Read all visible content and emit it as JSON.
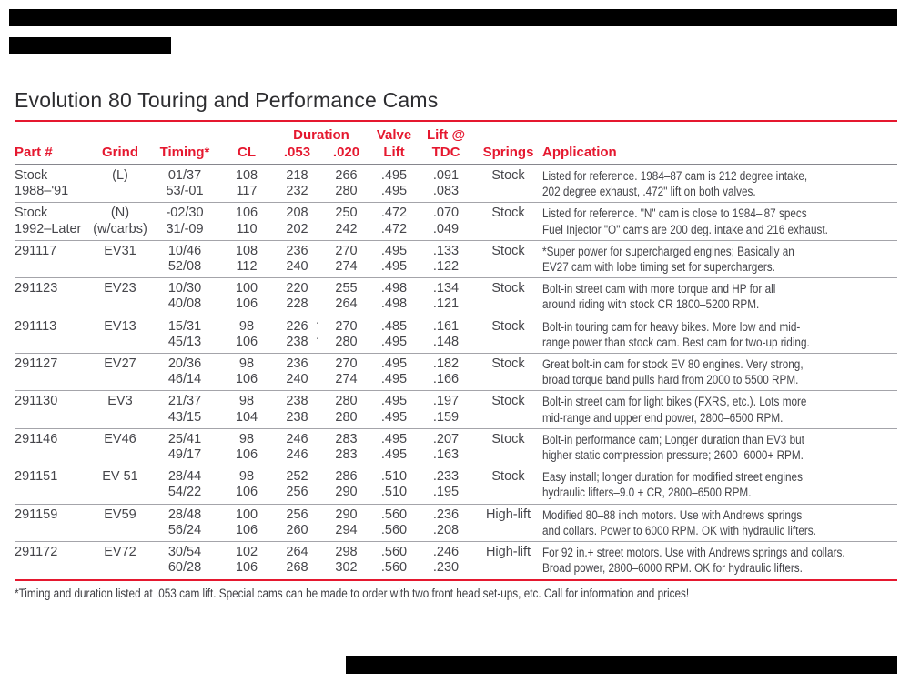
{
  "title": "Evolution 80 Touring and Performance Cams",
  "accent_color": "#e5182f",
  "redaction_color": "#000000",
  "table": {
    "columns": {
      "part": "Part #",
      "grind": "Grind",
      "timing": "Timing*",
      "cl": "CL",
      "duration_group": "Duration",
      "d053": ".053",
      "d020": ".020",
      "valve_top": "Valve",
      "valve_bottom": "Lift",
      "lift_top": "Lift @",
      "lift_bottom": "TDC",
      "springs": "Springs",
      "application": "Application"
    },
    "rows": [
      {
        "part": [
          "Stock",
          "1988–'91"
        ],
        "grind": [
          "(L)"
        ],
        "timing": [
          "01/37",
          "53/-01"
        ],
        "cl": [
          "108",
          "117"
        ],
        "d053": [
          "218",
          "232"
        ],
        "d020": [
          "266",
          "280"
        ],
        "valve": [
          ".495",
          ".495"
        ],
        "tdc": [
          ".091",
          ".083"
        ],
        "springs": "Stock",
        "application": [
          "Listed for reference. 1984–87 cam is 212 degree intake,",
          "202 degree exhaust, .472\" lift on both valves."
        ]
      },
      {
        "part": [
          "Stock",
          "1992–Later"
        ],
        "grind": [
          "(N)",
          "(w/carbs)"
        ],
        "timing": [
          "-02/30",
          "31/-09"
        ],
        "cl": [
          "106",
          "110"
        ],
        "d053": [
          "208",
          "202"
        ],
        "d020": [
          "250",
          "242"
        ],
        "valve": [
          ".472",
          ".472"
        ],
        "tdc": [
          ".070",
          ".049"
        ],
        "springs": "Stock",
        "application": [
          "Listed for reference. \"N\" cam is close to 1984–'87 specs",
          "Fuel Injector \"O\" cams are 200 deg. intake and 216 exhaust."
        ]
      },
      {
        "part": [
          "291117"
        ],
        "grind": [
          "EV31"
        ],
        "timing": [
          "10/46",
          "52/08"
        ],
        "cl": [
          "108",
          "112"
        ],
        "d053": [
          "236",
          "240"
        ],
        "d020": [
          "270",
          "274"
        ],
        "valve": [
          ".495",
          ".495"
        ],
        "tdc": [
          ".133",
          ".122"
        ],
        "springs": "Stock",
        "application": [
          "*Super power for supercharged engines; Basically an",
          "EV27 cam with lobe timing set for superchargers."
        ]
      },
      {
        "part": [
          "291123"
        ],
        "grind": [
          "EV23"
        ],
        "timing": [
          "10/30",
          "40/08"
        ],
        "cl": [
          "100",
          "106"
        ],
        "d053": [
          "220",
          "228"
        ],
        "d020": [
          "255",
          "264"
        ],
        "valve": [
          ".498",
          ".498"
        ],
        "tdc": [
          ".134",
          ".121"
        ],
        "springs": "Stock",
        "application": [
          "Bolt-in street cam with more torque and HP for all",
          "around riding with stock CR 1800–5200 RPM."
        ]
      },
      {
        "part": [
          "291113"
        ],
        "grind": [
          "EV13"
        ],
        "timing": [
          "15/31",
          "45/13"
        ],
        "cl": [
          "98",
          "106"
        ],
        "d053": [
          "226",
          "238"
        ],
        "d020": [
          "270",
          "280"
        ],
        "valve": [
          ".485",
          ".495"
        ],
        "tdc": [
          ".161",
          ".148"
        ],
        "springs": "Stock",
        "application": [
          "Bolt-in touring cam for heavy bikes. More low and mid-",
          "range power than stock cam. Best cam for two-up riding."
        ]
      },
      {
        "part": [
          "291127"
        ],
        "grind": [
          "EV27"
        ],
        "timing": [
          "20/36",
          "46/14"
        ],
        "cl": [
          "98",
          "106"
        ],
        "d053": [
          "236",
          "240"
        ],
        "d020": [
          "270",
          "274"
        ],
        "valve": [
          ".495",
          ".495"
        ],
        "tdc": [
          ".182",
          ".166"
        ],
        "springs": "Stock",
        "application": [
          "Great bolt-in cam for stock EV 80 engines. Very strong,",
          "broad torque band pulls hard from 2000 to 5500 RPM."
        ]
      },
      {
        "part": [
          "291130"
        ],
        "grind": [
          "EV3"
        ],
        "timing": [
          "21/37",
          "43/15"
        ],
        "cl": [
          "98",
          "104"
        ],
        "d053": [
          "238",
          "238"
        ],
        "d020": [
          "280",
          "280"
        ],
        "valve": [
          ".495",
          ".495"
        ],
        "tdc": [
          ".197",
          ".159"
        ],
        "springs": "Stock",
        "application": [
          "Bolt-in street cam for light bikes (FXRS, etc.). Lots more",
          "mid-range and upper end power, 2800–6500 RPM."
        ]
      },
      {
        "part": [
          "291146"
        ],
        "grind": [
          "EV46"
        ],
        "timing": [
          "25/41",
          "49/17"
        ],
        "cl": [
          "98",
          "106"
        ],
        "d053": [
          "246",
          "246"
        ],
        "d020": [
          "283",
          "283"
        ],
        "valve": [
          ".495",
          ".495"
        ],
        "tdc": [
          ".207",
          ".163"
        ],
        "springs": "Stock",
        "application": [
          "Bolt-in performance cam; Longer duration than EV3 but",
          "higher static compression pressure; 2600–6000+ RPM."
        ]
      },
      {
        "part": [
          "291151"
        ],
        "grind": [
          "EV 51"
        ],
        "timing": [
          "28/44",
          "54/22"
        ],
        "cl": [
          "98",
          "106"
        ],
        "d053": [
          "252",
          "256"
        ],
        "d020": [
          "286",
          "290"
        ],
        "valve": [
          ".510",
          ".510"
        ],
        "tdc": [
          ".233",
          ".195"
        ],
        "springs": "Stock",
        "application": [
          "Easy install; longer duration for modified street engines",
          "hydraulic lifters–9.0 + CR, 2800–6500 RPM."
        ]
      },
      {
        "part": [
          "291159"
        ],
        "grind": [
          "EV59"
        ],
        "timing": [
          "28/48",
          "56/24"
        ],
        "cl": [
          "100",
          "106"
        ],
        "d053": [
          "256",
          "260"
        ],
        "d020": [
          "290",
          "294"
        ],
        "valve": [
          ".560",
          ".560"
        ],
        "tdc": [
          ".236",
          ".208"
        ],
        "springs": "High-lift",
        "application": [
          "Modified 80–88 inch motors. Use with Andrews springs",
          "and collars. Power to 6000 RPM. OK with hydraulic lifters."
        ]
      },
      {
        "part": [
          "291172"
        ],
        "grind": [
          "EV72"
        ],
        "timing": [
          "30/54",
          "60/28"
        ],
        "cl": [
          "102",
          "106"
        ],
        "d053": [
          "264",
          "268"
        ],
        "d020": [
          "298",
          "302"
        ],
        "valve": [
          ".560",
          ".560"
        ],
        "tdc": [
          ".246",
          ".230"
        ],
        "springs": "High-lift",
        "application": [
          "For 92 in.+ street motors. Use with Andrews springs and collars.",
          "Broad power, 2800–6000 RPM. OK for hydraulic lifters."
        ]
      }
    ]
  },
  "scan_specks": [
    ".",
    "."
  ],
  "footnote": "*Timing and duration listed at .053 cam lift. Special cams can be made to order with two front head set-ups, etc. Call for information and prices!"
}
